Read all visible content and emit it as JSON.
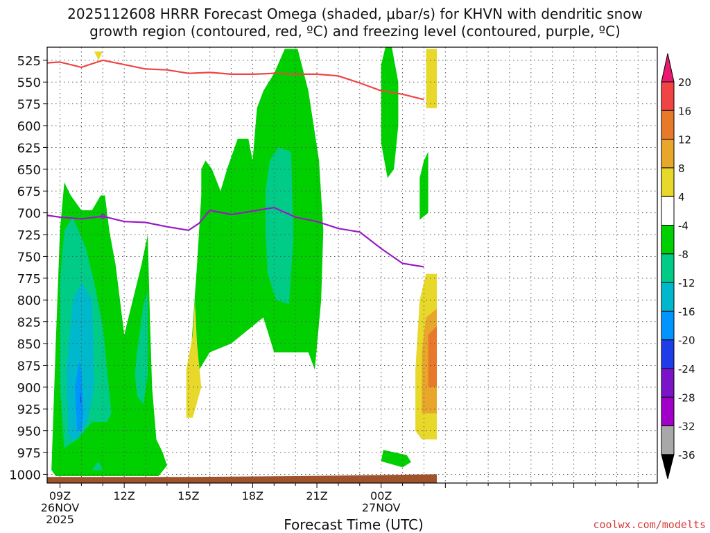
{
  "chart_data": {
    "type": "heatmap",
    "title_lines": [
      "2025112608 HRRR Forecast Omega (shaded, μbar/s) for KHVN with dendritic snow",
      "growth region (contoured, red, ºC) and freezing level (contoured, purple, ºC)"
    ],
    "xlabel": "Forecast Time (UTC)",
    "credit": "coolwx.com/modelts",
    "x_range_hours": [
      8.4,
      36.9
    ],
    "y_range_hpa": [
      510,
      1010
    ],
    "y_ticks": [
      525,
      550,
      575,
      600,
      625,
      650,
      675,
      700,
      725,
      750,
      775,
      800,
      825,
      850,
      875,
      900,
      925,
      950,
      975,
      1000
    ],
    "x_ticks": [
      {
        "hour": 9,
        "lines": [
          "09Z",
          "26NOV",
          "2025"
        ]
      },
      {
        "hour": 12,
        "lines": [
          "12Z"
        ]
      },
      {
        "hour": 15,
        "lines": [
          "15Z"
        ]
      },
      {
        "hour": 18,
        "lines": [
          "18Z"
        ]
      },
      {
        "hour": 21,
        "lines": [
          "21Z"
        ]
      },
      {
        "hour": 24,
        "lines": [
          "00Z",
          "27NOV"
        ]
      }
    ],
    "colorbar_levels": [
      {
        "label": "20",
        "color": "#e8196e"
      },
      {
        "label": "16",
        "color": "#f04444"
      },
      {
        "label": "12",
        "color": "#e8782a"
      },
      {
        "label": "8",
        "color": "#e8a62a"
      },
      {
        "label": "4",
        "color": "#e8d82a"
      },
      {
        "label": "-4",
        "color": "#ffffff"
      },
      {
        "label": "-8",
        "color": "#00d000"
      },
      {
        "label": "-12",
        "color": "#00cc88"
      },
      {
        "label": "-16",
        "color": "#00b8cc"
      },
      {
        "label": "-20",
        "color": "#0094ff"
      },
      {
        "label": "-24",
        "color": "#1e3ce8"
      },
      {
        "label": "-28",
        "color": "#7a14c8"
      },
      {
        "label": "-32",
        "color": "#a000c8"
      },
      {
        "label": "-36",
        "color": "#a8a8a8"
      }
    ],
    "series": [
      {
        "name": "dendritic snow growth region",
        "color": "#f04444",
        "points": [
          [
            8.4,
            528
          ],
          [
            9.0,
            527
          ],
          [
            10.0,
            533
          ],
          [
            11.0,
            525
          ],
          [
            12.0,
            530
          ],
          [
            13.0,
            535
          ],
          [
            14.0,
            536
          ],
          [
            15.0,
            540
          ],
          [
            16.0,
            539
          ],
          [
            17.0,
            541
          ],
          [
            18.0,
            541
          ],
          [
            19.0,
            540
          ],
          [
            20.0,
            541
          ],
          [
            21.0,
            541
          ],
          [
            22.0,
            543
          ],
          [
            23.0,
            551
          ],
          [
            24.0,
            560
          ],
          [
            25.0,
            564
          ],
          [
            26.0,
            570
          ]
        ]
      },
      {
        "name": "freezing level",
        "color": "#9a18c8",
        "label": "0",
        "points": [
          [
            8.4,
            703
          ],
          [
            9.0,
            705
          ],
          [
            10.0,
            707
          ],
          [
            11.0,
            704
          ],
          [
            12.0,
            710
          ],
          [
            13.0,
            711
          ],
          [
            14.0,
            716
          ],
          [
            15.0,
            720
          ],
          [
            15.5,
            712
          ],
          [
            16.0,
            697
          ],
          [
            17.0,
            702
          ],
          [
            18.0,
            698
          ],
          [
            19.0,
            694
          ],
          [
            20.0,
            705
          ],
          [
            21.0,
            710
          ],
          [
            22.0,
            718
          ],
          [
            23.0,
            722
          ],
          [
            24.0,
            741
          ],
          [
            25.0,
            758
          ],
          [
            26.0,
            762
          ]
        ]
      }
    ],
    "omega_regions": [
      {
        "value_band": "-4 to -8",
        "color": "#00d000",
        "outline": [
          [
            8.6,
            995
          ],
          [
            8.8,
            850
          ],
          [
            9.0,
            720
          ],
          [
            9.2,
            665
          ],
          [
            9.5,
            680
          ],
          [
            10.0,
            697
          ],
          [
            10.5,
            697
          ],
          [
            10.9,
            680
          ],
          [
            11.1,
            680
          ],
          [
            11.3,
            720
          ],
          [
            11.6,
            760
          ],
          [
            12.0,
            840
          ],
          [
            12.4,
            800
          ],
          [
            12.8,
            760
          ],
          [
            13.1,
            725
          ],
          [
            13.2,
            820
          ],
          [
            13.3,
            900
          ],
          [
            13.5,
            960
          ],
          [
            13.8,
            975
          ],
          [
            14.0,
            990
          ],
          [
            13.6,
            1002
          ],
          [
            12.0,
            1002
          ],
          [
            10.0,
            1002
          ],
          [
            8.8,
            1002
          ]
        ]
      },
      {
        "value_band": "-4 to -8",
        "color": "#00d000",
        "outline": [
          [
            15.0,
            900
          ],
          [
            15.2,
            830
          ],
          [
            15.4,
            760
          ],
          [
            15.6,
            680
          ],
          [
            15.6,
            650
          ],
          [
            15.8,
            640
          ],
          [
            16.1,
            650
          ],
          [
            16.5,
            675
          ],
          [
            16.8,
            650
          ],
          [
            17.3,
            615
          ],
          [
            17.8,
            615
          ],
          [
            18.0,
            640
          ],
          [
            18.2,
            580
          ],
          [
            18.5,
            560
          ],
          [
            19.0,
            540
          ],
          [
            19.5,
            512
          ],
          [
            20.1,
            512
          ],
          [
            20.6,
            560
          ],
          [
            21.1,
            640
          ],
          [
            21.3,
            720
          ],
          [
            21.2,
            800
          ],
          [
            20.9,
            880
          ],
          [
            20.6,
            860
          ],
          [
            19.0,
            860
          ],
          [
            18.5,
            820
          ],
          [
            18.0,
            830
          ],
          [
            17.0,
            850
          ],
          [
            16.0,
            860
          ]
        ]
      },
      {
        "value_band": "-4 to -8",
        "color": "#00d000",
        "outline": [
          [
            24.0,
            590
          ],
          [
            24.0,
            530
          ],
          [
            24.2,
            510
          ],
          [
            24.5,
            510
          ],
          [
            24.8,
            550
          ],
          [
            24.8,
            600
          ],
          [
            24.6,
            650
          ],
          [
            24.3,
            660
          ],
          [
            24.0,
            620
          ]
        ]
      },
      {
        "value_band": "-4 to -8",
        "color": "#00d000",
        "outline": [
          [
            24.1,
            972
          ],
          [
            24.0,
            985
          ],
          [
            25.0,
            992
          ],
          [
            25.4,
            986
          ],
          [
            25.2,
            978
          ]
        ]
      },
      {
        "value_band": "-4 to -8",
        "color": "#00d000",
        "outline": [
          [
            25.8,
            708
          ],
          [
            25.8,
            660
          ],
          [
            26.0,
            640
          ],
          [
            26.2,
            630
          ],
          [
            26.2,
            700
          ]
        ]
      },
      {
        "value_band": "-8 to -12",
        "color": "#00cc88",
        "outline": [
          [
            9.2,
            970
          ],
          [
            9.0,
            900
          ],
          [
            9.0,
            780
          ],
          [
            9.2,
            720
          ],
          [
            9.6,
            705
          ],
          [
            10.2,
            740
          ],
          [
            10.6,
            780
          ],
          [
            11.0,
            830
          ],
          [
            11.4,
            930
          ],
          [
            11.2,
            940
          ],
          [
            10.5,
            940
          ],
          [
            9.8,
            960
          ]
        ]
      },
      {
        "value_band": "-8 to -12",
        "color": "#00cc88",
        "outline": [
          [
            12.5,
            885
          ],
          [
            12.6,
            860
          ],
          [
            12.9,
            805
          ],
          [
            13.1,
            790
          ],
          [
            13.1,
            840
          ],
          [
            13.1,
            885
          ],
          [
            12.9,
            920
          ],
          [
            12.6,
            910
          ]
        ]
      },
      {
        "value_band": "-8 to -12",
        "color": "#00cc88",
        "outline": [
          [
            18.6,
            720
          ],
          [
            18.6,
            675
          ],
          [
            18.8,
            640
          ],
          [
            19.2,
            625
          ],
          [
            19.8,
            630
          ],
          [
            19.9,
            730
          ],
          [
            19.7,
            805
          ],
          [
            19.1,
            800
          ],
          [
            18.7,
            770
          ]
        ]
      },
      {
        "value_band": "-8 to -12",
        "color": "#00cc88",
        "outline": [
          [
            10.5,
            995
          ],
          [
            10.8,
            985
          ],
          [
            11.0,
            995
          ]
        ]
      },
      {
        "value_band": "-12 to -16",
        "color": "#00b8cc",
        "outline": [
          [
            9.4,
            960
          ],
          [
            9.3,
            880
          ],
          [
            9.6,
            800
          ],
          [
            10.0,
            780
          ],
          [
            10.5,
            800
          ],
          [
            10.6,
            900
          ],
          [
            10.3,
            940
          ],
          [
            9.8,
            960
          ]
        ]
      },
      {
        "value_band": "-16 to -20",
        "color": "#0094ff",
        "outline": [
          [
            9.8,
            950
          ],
          [
            9.7,
            900
          ],
          [
            9.9,
            870
          ],
          [
            10.0,
            880
          ],
          [
            10.1,
            930
          ],
          [
            10.0,
            950
          ]
        ]
      },
      {
        "value_band": "-20 to -24",
        "color": "#1e3ce8",
        "outline": [
          [
            9.95,
            920
          ],
          [
            9.95,
            905
          ],
          [
            10.0,
            915
          ]
        ]
      },
      {
        "value_band": "4 to 8",
        "color": "#e8d82a",
        "outline": [
          [
            14.9,
            935
          ],
          [
            14.9,
            880
          ],
          [
            15.2,
            840
          ],
          [
            15.3,
            800
          ],
          [
            15.4,
            850
          ],
          [
            15.6,
            900
          ],
          [
            15.2,
            935
          ]
        ]
      },
      {
        "value_band": "4 to 8",
        "color": "#e8d82a",
        "outline": [
          [
            10.6,
            515
          ],
          [
            10.8,
            525
          ],
          [
            11.0,
            515
          ]
        ]
      },
      {
        "value_band": "4 to 8",
        "color": "#e8d82a",
        "outline": [
          [
            26.1,
            580
          ],
          [
            26.1,
            512
          ],
          [
            26.6,
            512
          ],
          [
            26.6,
            580
          ]
        ]
      },
      {
        "value_band": "4 to 8",
        "color": "#e8d82a",
        "outline": [
          [
            25.6,
            950
          ],
          [
            25.6,
            880
          ],
          [
            25.8,
            800
          ],
          [
            26.1,
            770
          ],
          [
            26.6,
            770
          ],
          [
            26.6,
            960
          ],
          [
            25.9,
            960
          ]
        ]
      },
      {
        "value_band": "8 to 12",
        "color": "#e8a62a",
        "outline": [
          [
            25.9,
            930
          ],
          [
            25.9,
            860
          ],
          [
            26.1,
            820
          ],
          [
            26.6,
            810
          ],
          [
            26.6,
            930
          ]
        ]
      },
      {
        "value_band": "12 to 16",
        "color": "#e8782a",
        "outline": [
          [
            26.2,
            900
          ],
          [
            26.2,
            840
          ],
          [
            26.6,
            830
          ],
          [
            26.6,
            900
          ]
        ]
      }
    ],
    "surface": {
      "color": "#a0522d",
      "points": [
        [
          8.4,
          1003
        ],
        [
          15.0,
          1003
        ],
        [
          20.0,
          1002
        ],
        [
          26.6,
          1000
        ]
      ]
    },
    "grid": true
  }
}
